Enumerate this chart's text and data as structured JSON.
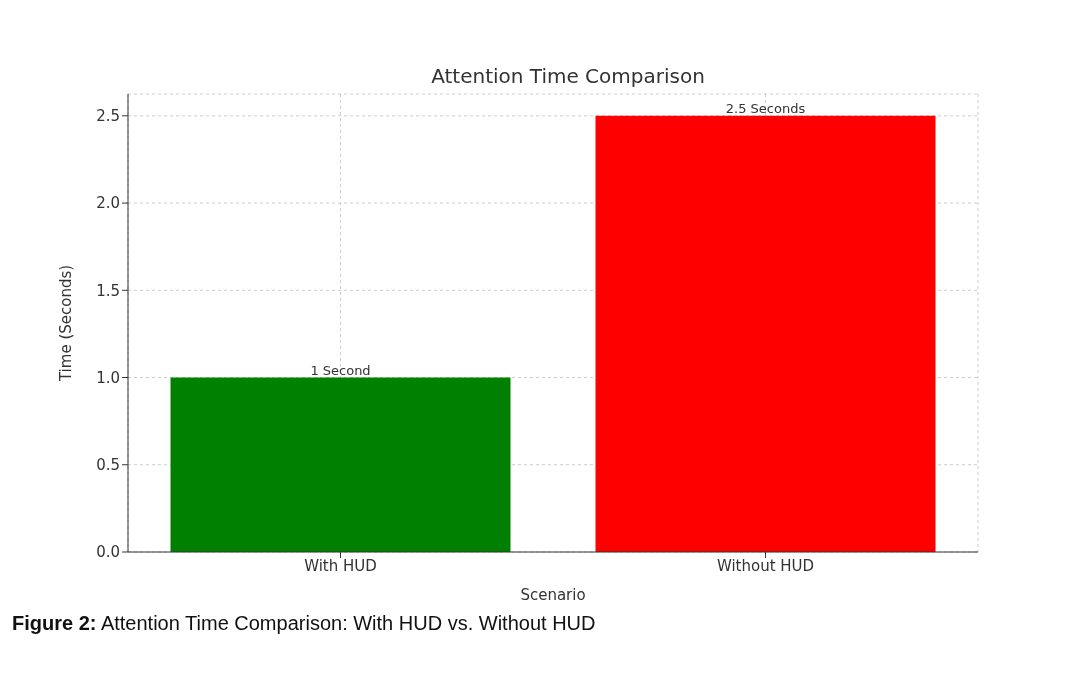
{
  "chart_data": {
    "type": "bar",
    "title": "Attention Time Comparison",
    "xlabel": "Scenario",
    "ylabel": "Time (Seconds)",
    "categories": [
      "With HUD",
      "Without HUD"
    ],
    "values": [
      1,
      2.5
    ],
    "colors": [
      "#008000",
      "#ff0000"
    ],
    "value_labels": [
      "1 Second",
      "2.5 Seconds"
    ],
    "ylim": [
      0,
      2.625
    ],
    "yticks": [
      {
        "value": 0,
        "label": "0.0"
      },
      0.5,
      {
        "value": 1,
        "label": "1.0"
      },
      1.5,
      {
        "value": 2,
        "label": "2.0"
      },
      2.5
    ],
    "grid": true,
    "annotations": [
      "Figure 2: Attention Time Comparison: With HUD vs. Without HUD"
    ]
  }
}
